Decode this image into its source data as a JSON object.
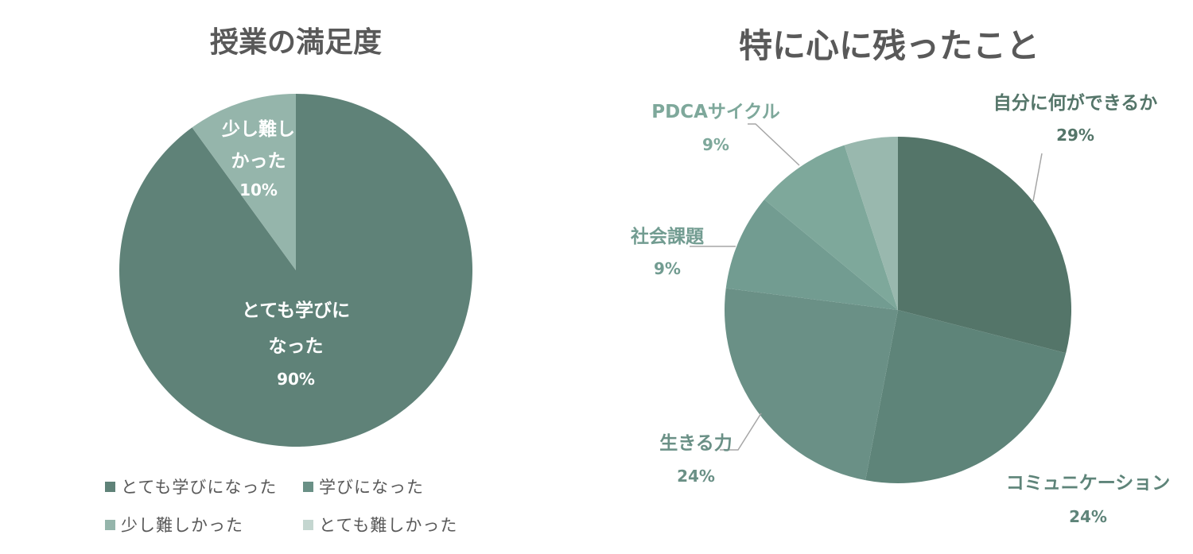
{
  "colors": {
    "title": "#595959",
    "left_slices": [
      "#5f8278",
      "#95b5ab"
    ],
    "right_slices": [
      "#547569",
      "#5e8479",
      "#6a9086",
      "#729c91",
      "#7ea89b",
      "#99b8ae"
    ],
    "legend": [
      "#5f8278",
      "#6a9086",
      "#95b5ab",
      "#c4d6d0"
    ]
  },
  "chart_data": [
    {
      "type": "pie",
      "title": "授業の満足度",
      "slices": [
        {
          "label_lines": [
            "とても学びに",
            "なった"
          ],
          "pct_text": "90%",
          "value": 90
        },
        {
          "label_lines": [
            "少し難し",
            "かった"
          ],
          "pct_text": "10%",
          "value": 10
        }
      ],
      "legend": [
        "とても学びになった",
        "学びになった",
        "少し難しかった",
        "とても難しかった"
      ],
      "legend_placement": "bottom"
    },
    {
      "type": "pie",
      "title": "特に心に残ったこと",
      "slices": [
        {
          "label": "自分に何ができるか",
          "pct_text": "29%",
          "value": 29
        },
        {
          "label": "コミュニケーション",
          "pct_text": "24%",
          "value": 24
        },
        {
          "label": "生きる力",
          "pct_text": "24%",
          "value": 24
        },
        {
          "label": "社会課題",
          "pct_text": "9%",
          "value": 9
        },
        {
          "label": "PDCAサイクル",
          "pct_text": "9%",
          "value": 9
        },
        {
          "label": "",
          "pct_text": "",
          "value": 5
        }
      ]
    }
  ]
}
